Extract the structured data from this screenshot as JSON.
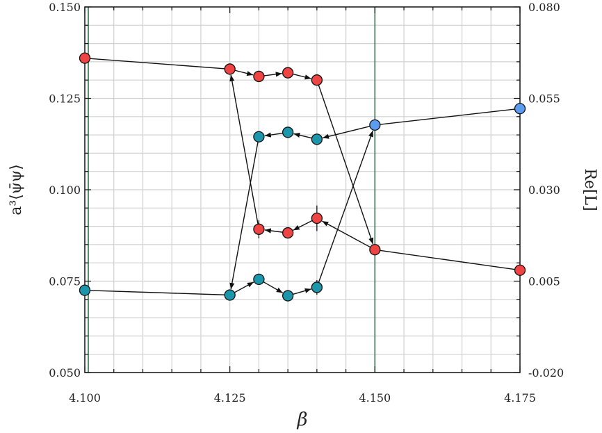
{
  "chart_data": {
    "type": "scatter",
    "xlabel": "β",
    "ylabel_left": "a³⟨ψ̄ψ⟩",
    "ylabel_right": "Re[L]",
    "xlim": [
      4.1,
      4.175
    ],
    "ylim_left": [
      0.05,
      0.15
    ],
    "ylim_right": [
      -0.02,
      0.08
    ],
    "x_ticks": [
      "4.100",
      "4.125",
      "4.150",
      "4.175"
    ],
    "y_ticks_left": [
      "0.050",
      "0.075",
      "0.100",
      "0.125",
      "0.150"
    ],
    "y_ticks_right": [
      "-0.020",
      "0.005",
      "0.030",
      "0.055",
      "0.080"
    ],
    "grid": true,
    "vertical_markers": [
      4.1,
      4.15
    ],
    "colors": {
      "red": "#ee4444",
      "teal": "#1c96aa",
      "blue": "#5b9bf0",
      "marker_line": "#1a6b3a",
      "grid": "#d0d0d0"
    },
    "points": [
      {
        "x": 4.1,
        "y": 0.136,
        "err": 0,
        "color": "red"
      },
      {
        "x": 4.125,
        "y": 0.133,
        "err": 0.001,
        "color": "red"
      },
      {
        "x": 4.13,
        "y": 0.131,
        "err": 0.0015,
        "color": "red"
      },
      {
        "x": 4.135,
        "y": 0.132,
        "err": 0.001,
        "color": "red"
      },
      {
        "x": 4.14,
        "y": 0.13,
        "err": 0.001,
        "color": "red"
      },
      {
        "x": 4.13,
        "y": 0.1145,
        "err": 0.0015,
        "color": "teal"
      },
      {
        "x": 4.135,
        "y": 0.1157,
        "err": 0.0015,
        "color": "teal"
      },
      {
        "x": 4.14,
        "y": 0.1138,
        "err": 0.0015,
        "color": "teal"
      },
      {
        "x": 4.15,
        "y": 0.1177,
        "err": 0,
        "color": "blue"
      },
      {
        "x": 4.175,
        "y": 0.1222,
        "err": 0,
        "color": "blue"
      },
      {
        "x": 4.13,
        "y": 0.0892,
        "err": 0.0025,
        "color": "red"
      },
      {
        "x": 4.135,
        "y": 0.0882,
        "err": 0.0015,
        "color": "red"
      },
      {
        "x": 4.14,
        "y": 0.0922,
        "err": 0.0035,
        "color": "red"
      },
      {
        "x": 4.15,
        "y": 0.0836,
        "err": 0,
        "color": "red"
      },
      {
        "x": 4.175,
        "y": 0.078,
        "err": 0,
        "color": "red"
      },
      {
        "x": 4.1,
        "y": 0.0725,
        "err": 0,
        "color": "teal"
      },
      {
        "x": 4.125,
        "y": 0.0712,
        "err": 0.0005,
        "color": "teal"
      },
      {
        "x": 4.13,
        "y": 0.0755,
        "err": 0.0015,
        "color": "teal"
      },
      {
        "x": 4.135,
        "y": 0.071,
        "err": 0.0005,
        "color": "teal"
      },
      {
        "x": 4.14,
        "y": 0.0733,
        "err": 0.002,
        "color": "teal"
      }
    ],
    "plain_lines": [
      [
        0,
        1
      ],
      [
        9,
        8
      ],
      [
        13,
        14
      ],
      [
        15,
        16
      ]
    ],
    "arrows": [
      [
        1,
        2
      ],
      [
        2,
        3
      ],
      [
        3,
        4
      ],
      [
        4,
        13
      ],
      [
        13,
        12
      ],
      [
        12,
        11
      ],
      [
        11,
        10
      ],
      [
        10,
        1
      ],
      [
        16,
        17
      ],
      [
        17,
        18
      ],
      [
        18,
        19
      ],
      [
        19,
        8
      ],
      [
        8,
        7
      ],
      [
        7,
        6
      ],
      [
        6,
        5
      ],
      [
        5,
        16
      ]
    ]
  }
}
